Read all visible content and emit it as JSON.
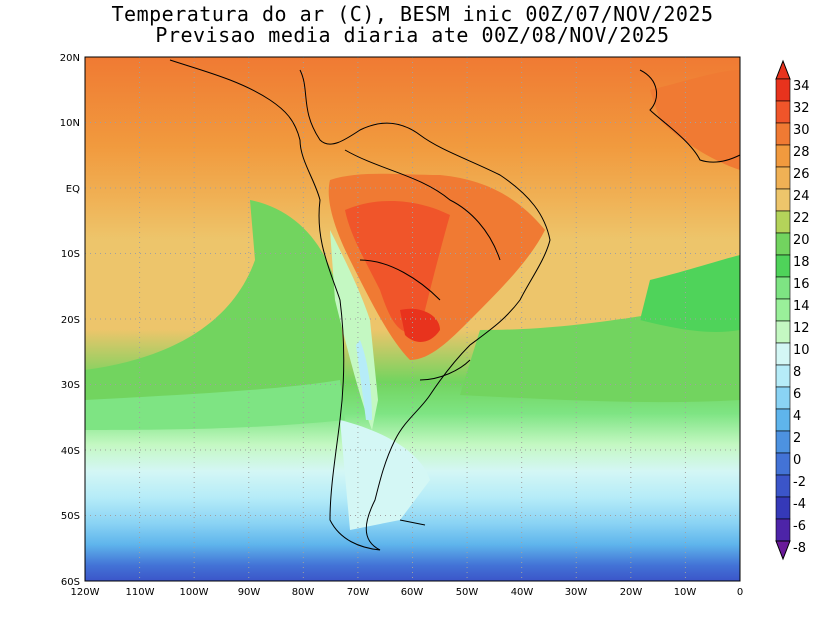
{
  "title": {
    "line1": "Temperatura do ar (C), BESM inic 00Z/07/NOV/2025",
    "line2": "Previsao media diaria ate 00Z/08/NOV/2025"
  },
  "lat_labels": [
    "20N",
    "10N",
    "EQ",
    "10S",
    "20S",
    "30S",
    "40S",
    "50S",
    "60S"
  ],
  "lon_labels": [
    "120W",
    "110W",
    "100W",
    "90W",
    "80W",
    "70W",
    "60W",
    "50W",
    "40W",
    "30W",
    "20W",
    "10W",
    "0"
  ],
  "colorbar": {
    "labels": [
      "34",
      "32",
      "30",
      "28",
      "26",
      "24",
      "22",
      "20",
      "18",
      "16",
      "14",
      "12",
      "10",
      "8",
      "6",
      "4",
      "2",
      "0",
      "-2",
      "-4",
      "-6",
      "-8"
    ],
    "colors": [
      "#e8331d",
      "#f0552a",
      "#f07a33",
      "#f19a3e",
      "#f0b155",
      "#edc56b",
      "#b4d35a",
      "#72d45f",
      "#4fd35a",
      "#7ee483",
      "#9af09a",
      "#c4f8c2",
      "#d4f7f5",
      "#b6ecf8",
      "#8ad3f4",
      "#5fb5ec",
      "#4d92e0",
      "#4373d6",
      "#3b55c9",
      "#3539b8",
      "#4d24a8",
      "#6a1a9a"
    ]
  },
  "colors": {
    "background": "#ffffff",
    "coastline": "#000000",
    "gridline": "#a0a0a0"
  }
}
